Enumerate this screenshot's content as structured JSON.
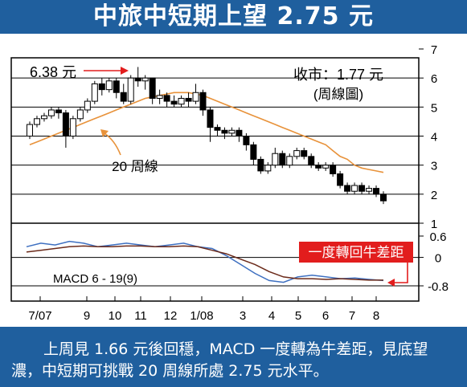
{
  "title": "中旅中短期上望 2.75 元",
  "caption": "上周見 1.66 元後回穩，MACD 一度轉為牛差距，見底望濃，中短期可挑戰 20 周線所處 2.75 元水平。",
  "colors": {
    "brand_blue": "#1f5f9e",
    "ma_line": "#e8923a",
    "signal_line": "#6b2a1a",
    "macd_line": "#3d6fc0",
    "callout_bg": "#e21d1d",
    "arrow": "#e21d1d"
  },
  "chart_data": [
    {
      "type": "candlestick",
      "ylim": [
        1,
        7
      ],
      "yticks": [
        "1",
        "2",
        "3",
        "4",
        "5",
        "6",
        "7"
      ],
      "xticks": [
        "7/07",
        "9",
        "10",
        "11",
        "12",
        "1/08",
        "3",
        "4",
        "5",
        "6",
        "7",
        "8"
      ],
      "grid": true,
      "annotations": {
        "high_label": "6.38 元",
        "close_label": "收市：1.77 元",
        "period_label": "(周線圖)",
        "ma_label": "20 周線"
      },
      "candles": [
        [
          4.0,
          4.4,
          3.9,
          4.5
        ],
        [
          4.4,
          4.6,
          4.3,
          4.7
        ],
        [
          4.6,
          4.7,
          4.5,
          4.8
        ],
        [
          4.7,
          4.9,
          4.6,
          5.0
        ],
        [
          4.9,
          4.8,
          4.6,
          5.0
        ],
        [
          4.8,
          4.0,
          3.6,
          4.9
        ],
        [
          4.0,
          4.6,
          3.9,
          4.7
        ],
        [
          4.6,
          4.9,
          4.5,
          5.0
        ],
        [
          4.9,
          5.2,
          4.8,
          5.3
        ],
        [
          5.2,
          5.8,
          5.1,
          5.9
        ],
        [
          5.8,
          5.6,
          5.4,
          6.0
        ],
        [
          5.6,
          5.9,
          5.5,
          6.0
        ],
        [
          5.9,
          5.5,
          5.3,
          6.0
        ],
        [
          5.5,
          5.2,
          5.1,
          5.8
        ],
        [
          5.2,
          6.0,
          5.1,
          6.1
        ],
        [
          6.0,
          5.9,
          5.7,
          6.38
        ],
        [
          5.9,
          6.0,
          5.6,
          6.1
        ],
        [
          6.0,
          5.3,
          5.1,
          6.0
        ],
        [
          5.3,
          5.4,
          5.1,
          5.6
        ],
        [
          5.4,
          5.2,
          5.0,
          5.5
        ],
        [
          5.2,
          5.1,
          5.0,
          5.4
        ],
        [
          5.1,
          5.3,
          5.0,
          5.4
        ],
        [
          5.3,
          5.2,
          5.0,
          5.5
        ],
        [
          5.2,
          5.5,
          5.1,
          5.8
        ],
        [
          5.5,
          4.9,
          4.7,
          5.6
        ],
        [
          4.9,
          4.3,
          3.8,
          5.0
        ],
        [
          4.3,
          4.2,
          4.0,
          4.4
        ],
        [
          4.2,
          4.1,
          3.9,
          4.3
        ],
        [
          4.1,
          4.2,
          4.0,
          4.3
        ],
        [
          4.2,
          4.0,
          3.8,
          4.3
        ],
        [
          4.0,
          3.7,
          3.5,
          4.1
        ],
        [
          3.7,
          3.2,
          3.0,
          3.8
        ],
        [
          3.2,
          2.8,
          2.7,
          3.3
        ],
        [
          2.8,
          3.0,
          2.7,
          3.1
        ],
        [
          3.0,
          3.4,
          2.9,
          3.6
        ],
        [
          3.4,
          3.0,
          2.9,
          3.5
        ],
        [
          3.0,
          3.3,
          2.9,
          3.4
        ],
        [
          3.3,
          3.5,
          3.2,
          3.6
        ],
        [
          3.5,
          3.3,
          3.2,
          3.6
        ],
        [
          3.3,
          3.0,
          2.9,
          3.4
        ],
        [
          3.0,
          2.9,
          2.8,
          3.1
        ],
        [
          2.9,
          3.0,
          2.8,
          3.1
        ],
        [
          3.0,
          2.7,
          2.6,
          3.1
        ],
        [
          2.7,
          2.3,
          2.2,
          2.8
        ],
        [
          2.3,
          2.1,
          2.0,
          2.4
        ],
        [
          2.1,
          2.3,
          2.0,
          2.4
        ],
        [
          2.3,
          2.1,
          2.0,
          2.4
        ],
        [
          2.1,
          2.2,
          2.0,
          2.3
        ],
        [
          2.2,
          2.0,
          1.9,
          2.3
        ],
        [
          2.0,
          1.77,
          1.66,
          2.1
        ]
      ],
      "ma20": [
        3.7,
        3.8,
        3.9,
        4.0,
        4.1,
        4.2,
        4.3,
        4.4,
        4.5,
        4.6,
        4.7,
        4.8,
        4.9,
        5.0,
        5.1,
        5.2,
        5.3,
        5.35,
        5.4,
        5.45,
        5.5,
        5.5,
        5.5,
        5.45,
        5.4,
        5.3,
        5.2,
        5.1,
        5.0,
        4.9,
        4.8,
        4.7,
        4.6,
        4.5,
        4.4,
        4.3,
        4.2,
        4.1,
        4.0,
        3.9,
        3.8,
        3.7,
        3.5,
        3.3,
        3.2,
        3.0,
        2.9,
        2.85,
        2.8,
        2.75
      ]
    },
    {
      "type": "line",
      "ylim": [
        -0.8,
        0.6
      ],
      "yticks": [
        "0.6",
        "0",
        "-0.8"
      ],
      "label": "MACD 6 - 19(9)",
      "callout": "一度轉回牛差距",
      "series": [
        {
          "role": "macd",
          "values": [
            0.3,
            0.4,
            0.35,
            0.45,
            0.4,
            0.3,
            0.35,
            0.4,
            0.35,
            0.3,
            0.35,
            0.4,
            0.3,
            0.25,
            0.05,
            -0.2,
            -0.45,
            -0.65,
            -0.7,
            -0.55,
            -0.5,
            -0.55,
            -0.6,
            -0.58,
            -0.62,
            -0.65
          ]
        },
        {
          "role": "signal",
          "values": [
            0.15,
            0.2,
            0.25,
            0.3,
            0.32,
            0.3,
            0.3,
            0.32,
            0.32,
            0.3,
            0.3,
            0.32,
            0.3,
            0.2,
            0.1,
            -0.05,
            -0.2,
            -0.4,
            -0.55,
            -0.6,
            -0.6,
            -0.62,
            -0.6,
            -0.62,
            -0.64,
            -0.64
          ]
        }
      ]
    }
  ]
}
